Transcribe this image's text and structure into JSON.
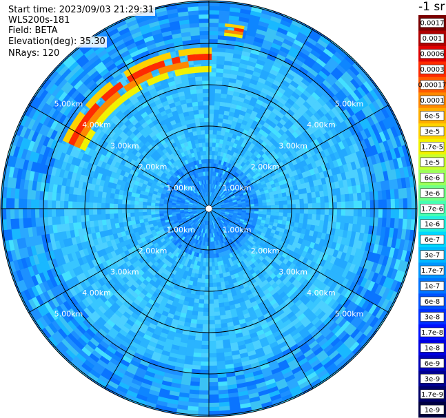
{
  "header": {
    "start_time": "Start time: 2023/09/03 21:29:31",
    "instrument": "WLS200s-181",
    "field": "Field: BETA",
    "elevation": "Elevation(deg): 35.30",
    "nrays": "NRays: 120"
  },
  "colorbar": {
    "unit": "-1 sr",
    "labels": [
      "0.0017",
      "0.001",
      "0.0006",
      "0.0003",
      "0.00017",
      "0.0001",
      "6e-5",
      "3e-5",
      "1.7e-5",
      "1e-5",
      "6e-6",
      "3e-6",
      "1.7e-6",
      "1e-6",
      "6e-7",
      "3e-7",
      "1.7e-7",
      "1e-7",
      "6e-8",
      "3e-8",
      "1.7e-8",
      "1e-8",
      "6e-9",
      "3e-9",
      "1.7e-9",
      "1e-9"
    ],
    "colors": [
      "#7a0000",
      "#b00000",
      "#e00000",
      "#ff2a00",
      "#ff5a00",
      "#ff8800",
      "#ffae00",
      "#ffd200",
      "#f2f200",
      "#c8ff2e",
      "#9cff5a",
      "#70ff86",
      "#46ffb2",
      "#20f0de",
      "#00d8ff",
      "#00b8ff",
      "#0096ff",
      "#0074ff",
      "#0052ff",
      "#0030ff",
      "#0010ff",
      "#0000e0",
      "#0000b8",
      "#000090",
      "#000068",
      "#000040"
    ]
  },
  "chart_data": {
    "type": "heatmap",
    "projection": "polar PPI",
    "range_ring_labels": [
      "1.00km",
      "2.00km",
      "3.00km",
      "4.00km",
      "5.00km"
    ],
    "range_rings_km": [
      1,
      2,
      3,
      4,
      5
    ],
    "max_range_km": 5.0,
    "rays": 120,
    "radial_spokes": 12,
    "field": "BETA",
    "background_level": "1.7e-8 to 1e-7",
    "features": [
      {
        "description": "aerosol/cloud arc",
        "range_km": [
          3.3,
          3.9
        ],
        "azimuth_deg": [
          295,
          360
        ],
        "level": "1e-5 to 3e-4"
      },
      {
        "description": "isolated echo",
        "range_km": [
          4.2,
          4.5
        ],
        "azimuth_deg": [
          5,
          9
        ],
        "level": "1.7e-5"
      }
    ]
  }
}
